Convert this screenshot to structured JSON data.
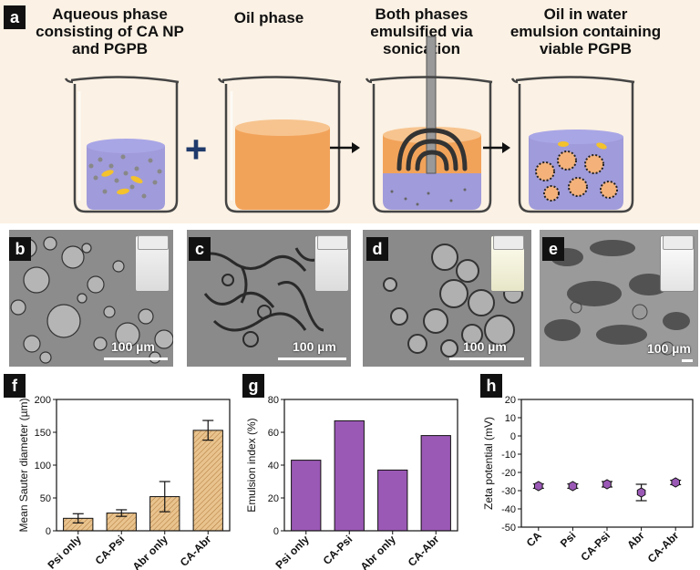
{
  "panel_a": {
    "label": "a",
    "steps": [
      {
        "title_lines": [
          "Aqueous phase",
          "consisting of CA NP",
          "and PGPB"
        ]
      },
      {
        "title_lines": [
          "Oil phase"
        ]
      },
      {
        "title_lines": [
          "Both phases",
          "emulsified via",
          "sonication"
        ]
      },
      {
        "title_lines": [
          "Oil in water",
          "emulsion containing",
          "viable PGPB"
        ]
      }
    ],
    "plus_symbol": "+",
    "colors": {
      "aqueous": "#8f8cd8",
      "oil": "#f2a35a",
      "bacteria": "#f3c22c",
      "beaker": "#444444"
    }
  },
  "micrographs": [
    {
      "label": "b",
      "scale_text": "100 µm"
    },
    {
      "label": "c",
      "scale_text": "100 µm"
    },
    {
      "label": "d",
      "scale_text": "100 µm"
    },
    {
      "label": "e",
      "scale_text": "100 µm"
    }
  ],
  "chart_data": [
    {
      "panel": "f",
      "type": "bar",
      "ylabel": "Mean Sauter diameter (µm)",
      "categories": [
        "Psi only",
        "CA-Psi",
        "Abr only",
        "CA-Abr"
      ],
      "values": [
        19,
        27,
        52,
        153
      ],
      "errors": [
        7,
        5,
        23,
        15
      ],
      "ylim": [
        0,
        200
      ],
      "yticks": [
        0,
        50,
        100,
        150,
        200
      ],
      "bar_color": "#e9c38e",
      "hatch": true
    },
    {
      "panel": "g",
      "type": "bar",
      "ylabel": "Emulsion index (%)",
      "categories": [
        "Psi only",
        "CA-Psi",
        "Abr only",
        "CA-Abr"
      ],
      "values": [
        43,
        67,
        37,
        58
      ],
      "ylim": [
        0,
        80
      ],
      "yticks": [
        0,
        20,
        40,
        60,
        80
      ],
      "bar_color": "#9b59b6"
    },
    {
      "panel": "h",
      "type": "scatter",
      "ylabel": "Zeta potential (mV)",
      "categories": [
        "CA",
        "Psi",
        "CA-Psi",
        "Abr",
        "CA-Abr"
      ],
      "values": [
        -27.5,
        -27.5,
        -26.5,
        -31,
        -25.5
      ],
      "errors": [
        1.2,
        1.2,
        1.5,
        4.5,
        1.2
      ],
      "ylim": [
        -50,
        20
      ],
      "yticks": [
        -50,
        -40,
        -30,
        -20,
        -10,
        0,
        10,
        20
      ],
      "marker_color": "#9b59b6"
    }
  ]
}
